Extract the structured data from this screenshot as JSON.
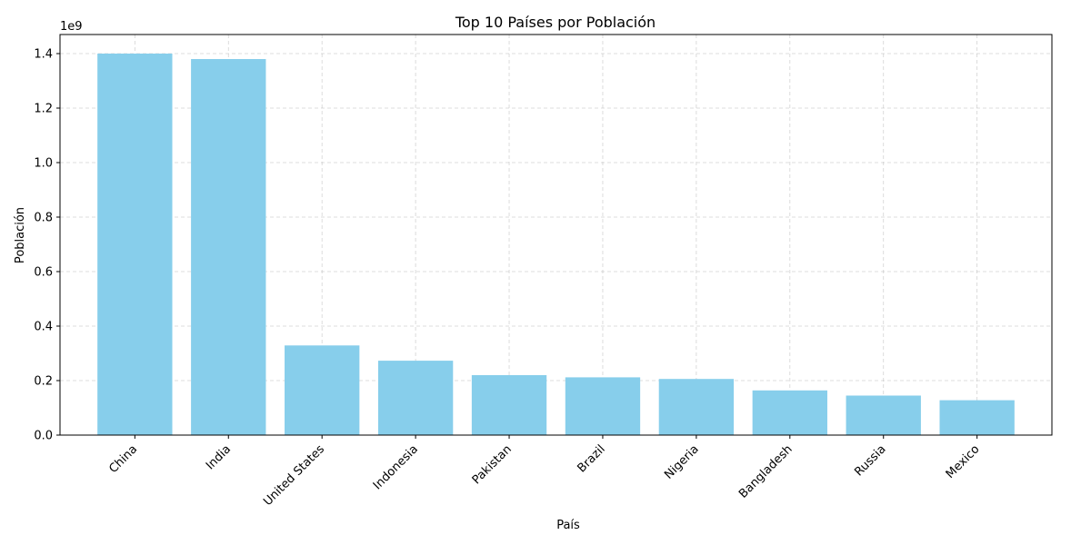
{
  "chart_data": {
    "type": "bar",
    "title": "Top 10 Países por Población",
    "xlabel": "País",
    "ylabel": "Población",
    "y_offset_text": "1e9",
    "categories": [
      "China",
      "India",
      "United States",
      "Indonesia",
      "Pakistan",
      "Brazil",
      "Nigeria",
      "Bangladesh",
      "Russia",
      "Mexico"
    ],
    "values": [
      1400000000,
      1380000000,
      329000000,
      273000000,
      220000000,
      212000000,
      206000000,
      164000000,
      145000000,
      128000000
    ],
    "ylim": [
      0,
      1470000000
    ],
    "yticks": [
      0,
      200000000,
      400000000,
      600000000,
      800000000,
      1000000000,
      1200000000,
      1400000000
    ],
    "ytick_labels": [
      "0.0",
      "0.2",
      "0.4",
      "0.6",
      "0.8",
      "1.0",
      "1.2",
      "1.4"
    ],
    "bar_color": "#87ceeb",
    "grid": true
  }
}
